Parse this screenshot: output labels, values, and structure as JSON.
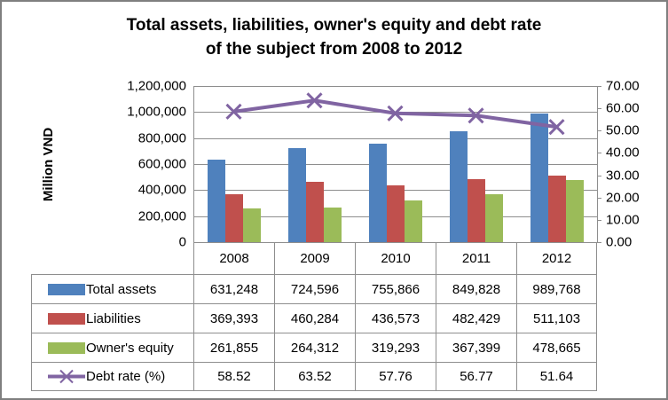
{
  "title": {
    "line1": "Total assets, liabilities, owner's equity and debt rate",
    "line2": "of the subject from 2008 to 2012"
  },
  "chart_data": {
    "type": "combo-bar-line",
    "categories": [
      "2008",
      "2009",
      "2010",
      "2011",
      "2012"
    ],
    "series": [
      {
        "name": "Total assets",
        "type": "bar",
        "axis": "left",
        "color": "#4f81bd",
        "values": [
          631248,
          724596,
          755866,
          849828,
          989768
        ],
        "labels": [
          "631,248",
          "724,596",
          "755,866",
          "849,828",
          "989,768"
        ]
      },
      {
        "name": "Liabilities",
        "type": "bar",
        "axis": "left",
        "color": "#c0504d",
        "values": [
          369393,
          460284,
          436573,
          482429,
          511103
        ],
        "labels": [
          "369,393",
          "460,284",
          "436,573",
          "482,429",
          "511,103"
        ]
      },
      {
        "name": "Owner's equity",
        "type": "bar",
        "axis": "left",
        "color": "#9bbb59",
        "values": [
          261855,
          264312,
          319293,
          367399,
          478665
        ],
        "labels": [
          "261,855",
          "264,312",
          "319,293",
          "367,399",
          "478,665"
        ]
      },
      {
        "name": "Debt rate (%)",
        "type": "line",
        "axis": "right",
        "color": "#8064a2",
        "marker": "x",
        "values": [
          58.52,
          63.52,
          57.76,
          56.77,
          51.64
        ],
        "labels": [
          "58.52",
          "63.52",
          "57.76",
          "56.77",
          "51.64"
        ]
      }
    ],
    "left_axis": {
      "label": "Million VND",
      "min": 0,
      "max": 1200000,
      "step": 200000,
      "tick_labels": [
        "1,200,000",
        "1,000,000",
        "800,000",
        "600,000",
        "400,000",
        "200,000",
        "0"
      ]
    },
    "right_axis": {
      "label": "",
      "min": 0,
      "max": 70,
      "step": 10,
      "tick_labels": [
        "70.00",
        "60.00",
        "50.00",
        "40.00",
        "30.00",
        "20.00",
        "10.00",
        "0.00"
      ]
    },
    "grid": "horizontal",
    "legend_position": "data-table-left",
    "colors": {
      "gridline": "#8e8e8e",
      "axis": "#8e8e8e",
      "table_border": "#8e8e8e",
      "frame_border": "#7f7f7f",
      "text": "#000000",
      "background": "#ffffff"
    }
  }
}
